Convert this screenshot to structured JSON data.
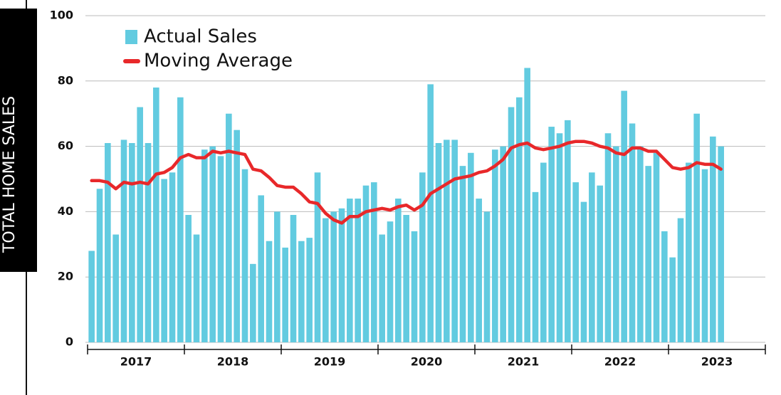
{
  "chart_data": {
    "type": "bar_line",
    "y_label": "TOTAL HOME SALES",
    "categories": [
      null,
      null,
      null,
      null,
      null,
      null,
      null,
      null,
      null,
      null,
      null,
      null,
      null,
      null,
      null,
      null,
      null,
      null,
      null,
      null,
      null,
      null,
      null,
      null,
      null,
      null,
      null,
      null,
      null,
      null,
      null,
      null,
      null,
      null,
      null,
      null,
      null,
      null,
      null,
      null,
      null,
      null,
      null,
      null,
      null,
      null,
      null,
      null,
      null,
      null,
      null,
      null,
      null,
      null,
      null,
      null,
      null,
      null,
      null,
      null,
      null,
      null,
      null,
      null,
      null,
      null,
      null,
      null,
      null,
      null,
      null,
      null,
      null,
      null,
      null,
      null,
      null,
      null,
      null
    ],
    "year_labels": [
      "2017",
      "2018",
      "2019",
      "2020",
      "2021",
      "2022",
      "2023"
    ],
    "series": [
      {
        "name": "Actual Sales",
        "kind": "bar",
        "color": "#62cbe0",
        "values": [
          28,
          47,
          61,
          33,
          62,
          61,
          72,
          61,
          78,
          50,
          52,
          75,
          39,
          33,
          59,
          60,
          57,
          70,
          65,
          53,
          24,
          45,
          31,
          40,
          29,
          39,
          31,
          32,
          52,
          38,
          40,
          41,
          44,
          44,
          48,
          49,
          33,
          37,
          44,
          39,
          34,
          52,
          79,
          61,
          62,
          62,
          54,
          58,
          44,
          40,
          59,
          60,
          72,
          75,
          84,
          46,
          55,
          66,
          64,
          68,
          49,
          43,
          52,
          48,
          64,
          60,
          77,
          67,
          60,
          54,
          58,
          34,
          26,
          38,
          55,
          70,
          53,
          63,
          60
        ]
      },
      {
        "name": "Moving Average",
        "kind": "line",
        "color": "#e8282a",
        "values": [
          49.5,
          49.5,
          49,
          47,
          49,
          48.5,
          49,
          48.5,
          51.5,
          52,
          53.5,
          56.5,
          57.5,
          56.5,
          56.5,
          58.5,
          58,
          58.5,
          58,
          57.5,
          53,
          52.5,
          50.5,
          48,
          47.5,
          47.5,
          45.5,
          43,
          42.5,
          39.5,
          37.5,
          36.5,
          38.5,
          38.5,
          40,
          40.5,
          41,
          40.5,
          41.5,
          42,
          40.5,
          42,
          45.5,
          47,
          48.5,
          50,
          50.5,
          51,
          52,
          52.5,
          54,
          56,
          59.5,
          60.5,
          61,
          59.5,
          59,
          59.5,
          60,
          61,
          61.5,
          61.5,
          61,
          60,
          59.5,
          58,
          57.5,
          59.5,
          59.5,
          58.5,
          58.5,
          56,
          53.5,
          53,
          53.5,
          55,
          54.5,
          54.5,
          53
        ]
      }
    ],
    "ylim": [
      0,
      100
    ],
    "yticks": [
      0,
      20,
      40,
      60,
      80,
      100
    ],
    "grid": true
  }
}
